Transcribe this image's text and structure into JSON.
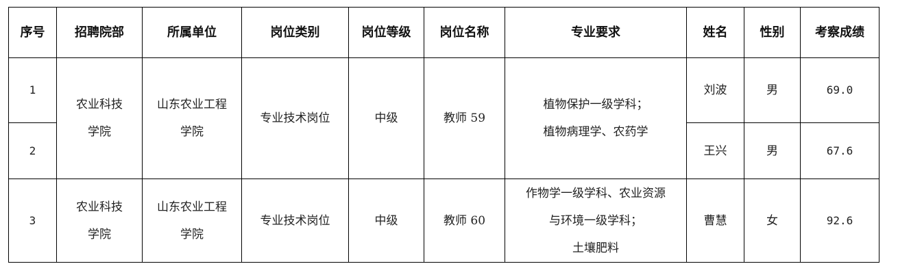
{
  "headers": [
    "序号",
    "招聘院部",
    "所属单位",
    "岗位类别",
    "岗位等级",
    "岗位名称",
    "专业要求",
    "姓名",
    "性别",
    "考察成绩"
  ],
  "groups": [
    {
      "department": [
        "农业科技",
        "学院"
      ],
      "unit": [
        "山东农业工程",
        "学院"
      ],
      "category": "专业技术岗位",
      "level": "中级",
      "position": "教师 59",
      "requirements": [
        "植物保护一级学科；",
        "植物病理学、农药学"
      ],
      "candidates": [
        {
          "no": "1",
          "name": "刘波",
          "gender": "男",
          "score": "69.0"
        },
        {
          "no": "2",
          "name": "王兴",
          "gender": "男",
          "score": "67.6"
        }
      ]
    },
    {
      "department": [
        "农业科技",
        "学院"
      ],
      "unit": [
        "山东农业工程",
        "学院"
      ],
      "category": "专业技术岗位",
      "level": "中级",
      "position": "教师 60",
      "requirements": [
        "作物学一级学科、农业资源",
        "与环境一级学科；",
        "土壤肥料"
      ],
      "candidates": [
        {
          "no": "3",
          "name": "曹慧",
          "gender": "女",
          "score": "92.6"
        }
      ]
    }
  ]
}
